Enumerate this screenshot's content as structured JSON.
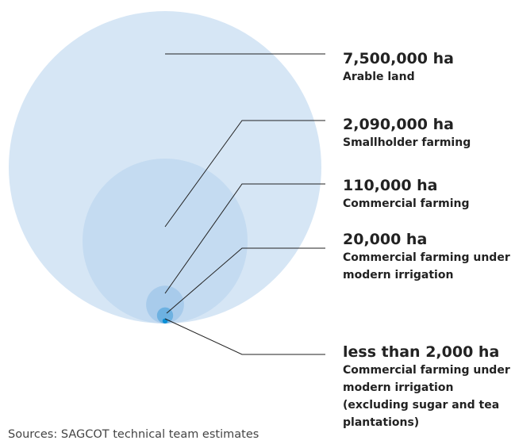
{
  "chart_data": {
    "type": "nested-bubble",
    "categories": [
      "Arable land",
      "Smallholder farming",
      "Commercial farming",
      "Commercial farming under modern irrigation",
      "Commercial farming under modern irrigation (excluding sugar and tea plantations)"
    ],
    "values": [
      7500000,
      2090000,
      110000,
      20000,
      2000
    ],
    "value_labels": [
      "7,500,000 ha",
      "2,090,000 ha",
      "110,000 ha",
      "20,000 ha",
      "less than 2,000 ha"
    ],
    "colors": [
      "#d6e6f5",
      "#c4dbf1",
      "#a8cbeb",
      "#6db1e1",
      "#0b8fd6"
    ],
    "source": "Sources: SAGCOT technical team estimates"
  }
}
